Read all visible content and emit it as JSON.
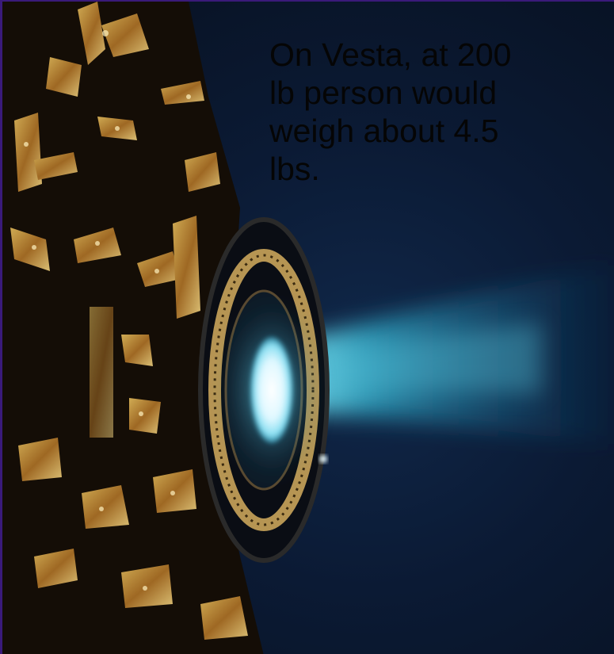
{
  "caption": {
    "text": "On Vesta, at 200\nlb person would\nweigh about 4.5\nlbs."
  },
  "colors": {
    "background": "#0b1a34",
    "plume": "#2fa9c8",
    "core_glow": "#e8fbff",
    "foil_gold": "#d9a441",
    "frame_border": "#3a1a7a",
    "caption_text": "#050505"
  },
  "scene": {
    "subject": "ion-thruster-firing",
    "icons": [
      "spacecraft-body-icon",
      "thruster-ring-icon",
      "ion-plume-icon"
    ]
  }
}
